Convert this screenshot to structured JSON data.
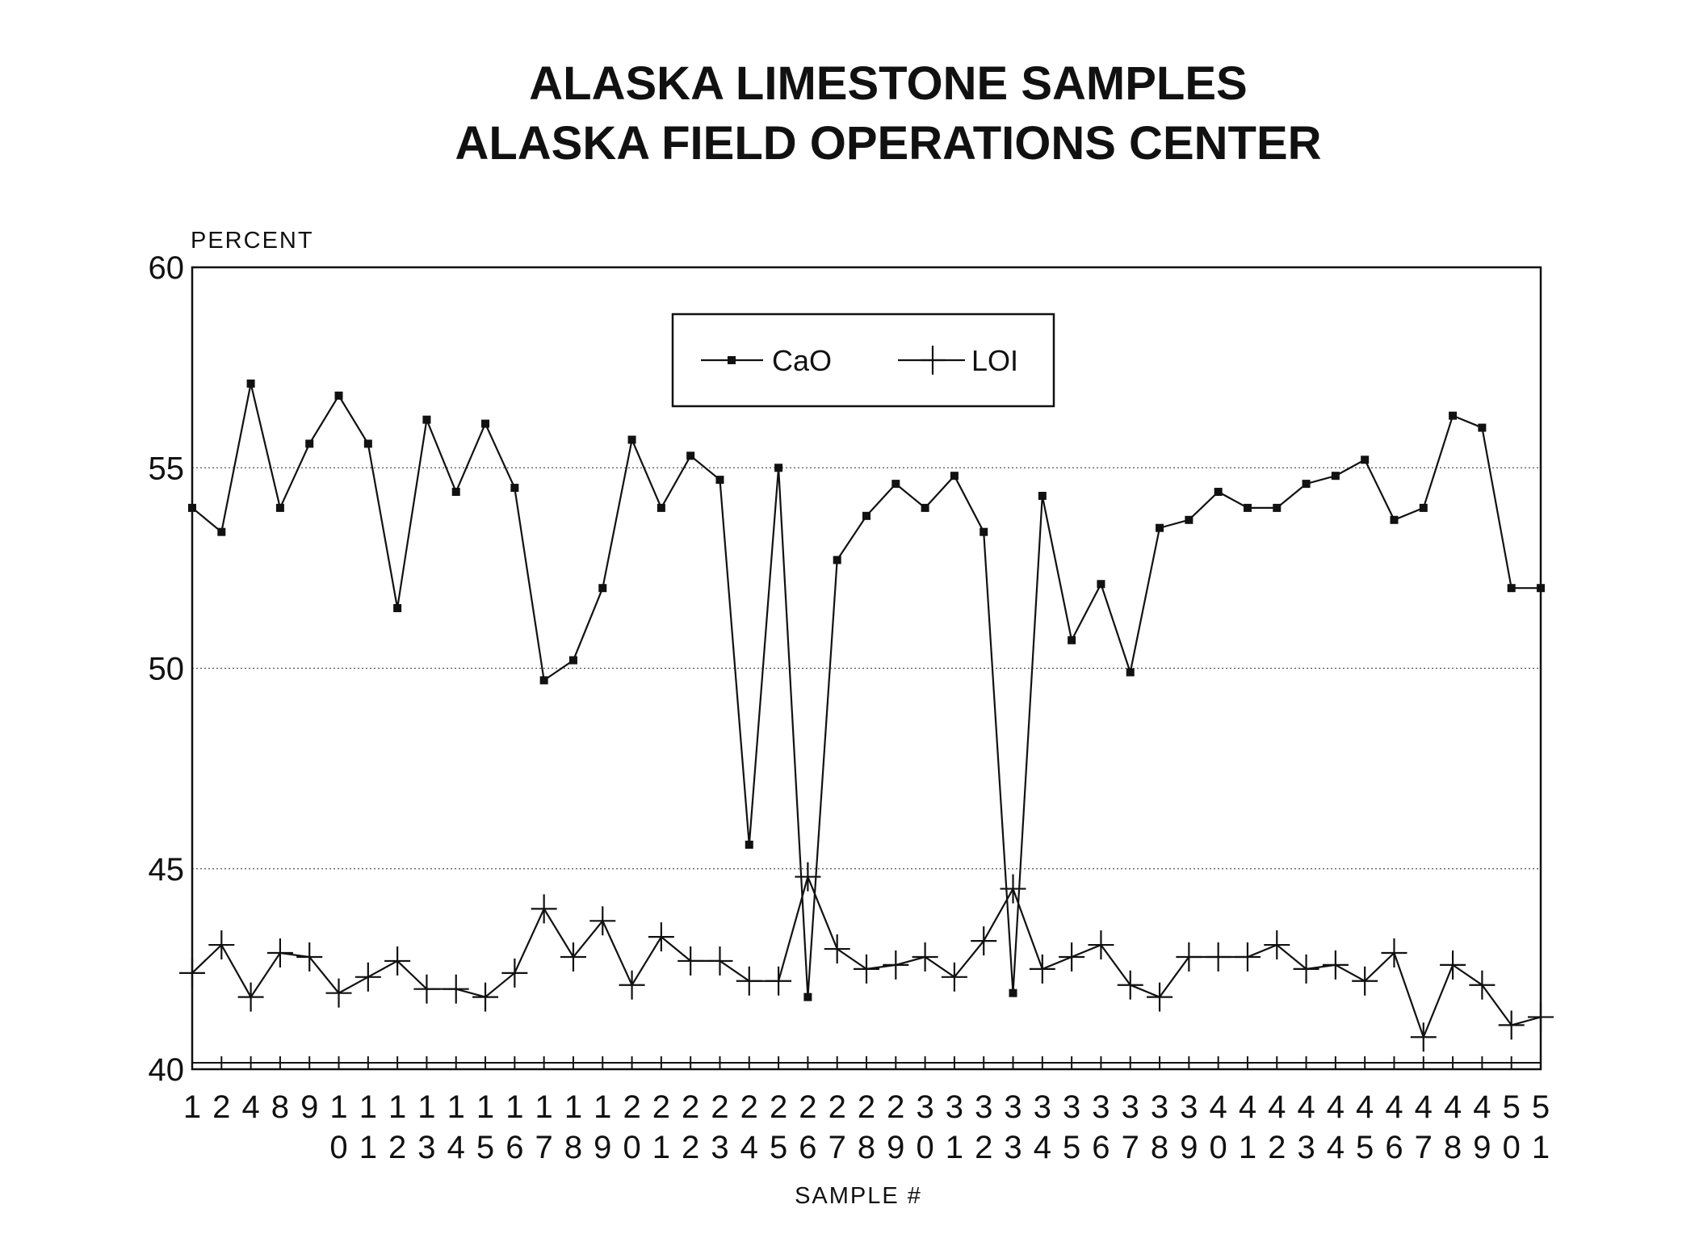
{
  "chart_data": {
    "type": "line",
    "title": [
      "ALASKA LIMESTONE SAMPLES",
      "ALASKA FIELD OPERATIONS CENTER"
    ],
    "ylabel": "PERCENT",
    "xlabel": "SAMPLE #",
    "ylim": [
      40,
      60
    ],
    "yticks": [
      40,
      45,
      50,
      55,
      60
    ],
    "grid": "horizontal dotted",
    "legend_position": "top-center",
    "categories": [
      "1",
      "2",
      "4",
      "8",
      "9",
      "10",
      "11",
      "12",
      "13",
      "14",
      "15",
      "16",
      "17",
      "18",
      "19",
      "20",
      "21",
      "22",
      "23",
      "24",
      "25",
      "26",
      "27",
      "28",
      "29",
      "30",
      "31",
      "32",
      "33",
      "34",
      "35",
      "36",
      "37",
      "38",
      "39",
      "40",
      "41",
      "42",
      "43",
      "44",
      "45",
      "46",
      "47",
      "48",
      "49",
      "50",
      "51"
    ],
    "series": [
      {
        "name": "CaO",
        "marker": "square",
        "values": [
          54.0,
          53.4,
          57.1,
          54.0,
          55.6,
          56.8,
          55.6,
          51.5,
          56.2,
          54.4,
          56.1,
          54.5,
          49.7,
          50.2,
          52.0,
          55.7,
          54.0,
          55.3,
          54.7,
          45.6,
          55.0,
          41.8,
          52.7,
          53.8,
          54.6,
          54.0,
          54.8,
          53.4,
          41.9,
          54.3,
          50.7,
          52.1,
          49.9,
          53.5,
          53.7,
          54.4,
          54.0,
          54.0,
          54.6,
          54.8,
          55.2,
          53.7,
          54.0,
          56.3,
          56.0,
          52.0,
          52.0
        ]
      },
      {
        "name": "LOI",
        "marker": "plus",
        "values": [
          42.4,
          43.1,
          41.8,
          42.9,
          42.8,
          41.9,
          42.3,
          42.7,
          42.0,
          42.0,
          41.8,
          42.4,
          44.0,
          42.8,
          43.7,
          42.1,
          43.3,
          42.7,
          42.7,
          42.2,
          42.2,
          44.8,
          43.0,
          42.5,
          42.6,
          42.8,
          42.3,
          43.2,
          44.5,
          42.5,
          42.8,
          43.1,
          42.1,
          41.8,
          42.8,
          42.8,
          42.8,
          43.1,
          42.5,
          42.6,
          42.2,
          42.9,
          40.8,
          42.6,
          42.1,
          41.1,
          41.3
        ]
      }
    ]
  }
}
